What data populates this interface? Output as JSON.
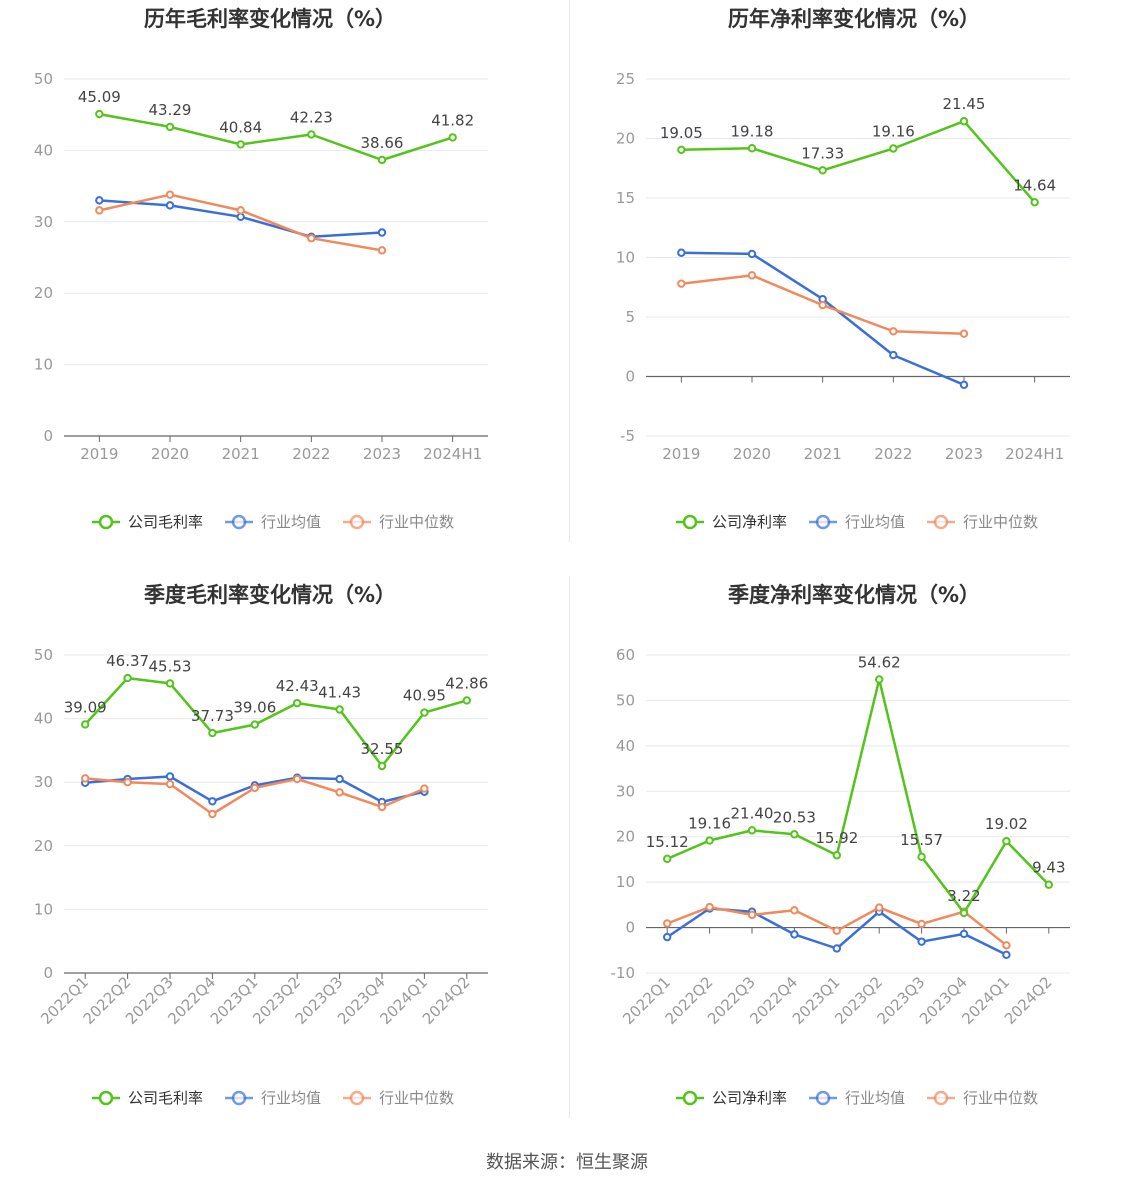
{
  "footer": {
    "source": "数据来源：恒生聚源"
  },
  "colors": {
    "company": "#52c41a",
    "industry_avg": "#3a6fd8",
    "industry_median": "#f08a5d",
    "grid": "#e5e8f0",
    "axis": "#666666"
  },
  "chart_data": [
    {
      "type": "line",
      "title": "历年毛利率变化情况（%）",
      "categories": [
        "2019",
        "2020",
        "2021",
        "2022",
        "2023",
        "2024H1"
      ],
      "yticks": [
        "0",
        "10",
        "20",
        "30",
        "40",
        "50"
      ],
      "ylim": [
        0,
        50
      ],
      "grid": true,
      "legend_position": "bottom",
      "series": [
        {
          "name": "公司毛利率",
          "role": "company",
          "values": [
            45.09,
            43.29,
            40.84,
            42.23,
            38.66,
            41.82
          ],
          "labels": [
            "45.09",
            "43.29",
            "40.84",
            "42.23",
            "38.66",
            "41.82"
          ]
        },
        {
          "name": "行业均值",
          "role": "industry_avg",
          "values": [
            33.0,
            32.3,
            30.7,
            27.9,
            28.5,
            null
          ]
        },
        {
          "name": "行业中位数",
          "role": "industry_median",
          "values": [
            31.6,
            33.8,
            31.6,
            27.7,
            26.0,
            null
          ]
        }
      ]
    },
    {
      "type": "line",
      "title": "历年净利率变化情况（%）",
      "categories": [
        "2019",
        "2020",
        "2021",
        "2022",
        "2023",
        "2024H1"
      ],
      "yticks": [
        "-5",
        "0",
        "5",
        "10",
        "15",
        "20",
        "25"
      ],
      "ylim": [
        -5,
        25
      ],
      "grid": true,
      "legend_position": "bottom",
      "series": [
        {
          "name": "公司净利率",
          "role": "company",
          "values": [
            19.05,
            19.18,
            17.33,
            19.16,
            21.45,
            14.64
          ],
          "labels": [
            "19.05",
            "19.18",
            "17.33",
            "19.16",
            "21.45",
            "14.64"
          ]
        },
        {
          "name": "行业均值",
          "role": "industry_avg",
          "values": [
            10.4,
            10.3,
            6.5,
            1.8,
            -0.7,
            null
          ]
        },
        {
          "name": "行业中位数",
          "role": "industry_median",
          "values": [
            7.8,
            8.5,
            6.0,
            3.8,
            3.6,
            null
          ]
        }
      ]
    },
    {
      "type": "line",
      "title": "季度毛利率变化情况（%）",
      "categories": [
        "2022Q1",
        "2022Q2",
        "2022Q3",
        "2022Q4",
        "2023Q1",
        "2023Q2",
        "2023Q3",
        "2023Q4",
        "2024Q1",
        "2024Q2"
      ],
      "yticks": [
        "0",
        "10",
        "20",
        "30",
        "40",
        "50"
      ],
      "ylim": [
        0,
        50
      ],
      "grid": true,
      "legend_position": "bottom",
      "series": [
        {
          "name": "公司毛利率",
          "role": "company",
          "values": [
            39.09,
            46.37,
            45.53,
            37.73,
            39.06,
            42.43,
            41.43,
            32.55,
            40.95,
            42.86
          ],
          "labels": [
            "39.09",
            "46.37",
            "45.53",
            "37.73",
            "39.06",
            "42.43",
            "41.43",
            "32.55",
            "40.95",
            "42.86"
          ]
        },
        {
          "name": "行业均值",
          "role": "industry_avg",
          "values": [
            29.9,
            30.5,
            30.9,
            27.0,
            29.5,
            30.7,
            30.5,
            26.9,
            28.5,
            null
          ]
        },
        {
          "name": "行业中位数",
          "role": "industry_median",
          "values": [
            30.6,
            30.0,
            29.7,
            25.0,
            29.1,
            30.5,
            28.4,
            26.1,
            29.0,
            null
          ]
        }
      ]
    },
    {
      "type": "line",
      "title": "季度净利率变化情况（%）",
      "categories": [
        "2022Q1",
        "2022Q2",
        "2022Q3",
        "2022Q4",
        "2023Q1",
        "2023Q2",
        "2023Q3",
        "2023Q4",
        "2024Q1",
        "2024Q2"
      ],
      "yticks": [
        "-10",
        "0",
        "10",
        "20",
        "30",
        "40",
        "50",
        "60"
      ],
      "ylim": [
        -10,
        60
      ],
      "grid": true,
      "legend_position": "bottom",
      "series": [
        {
          "name": "公司净利率",
          "role": "company",
          "values": [
            15.12,
            19.16,
            21.4,
            20.53,
            15.92,
            54.62,
            15.57,
            3.22,
            19.02,
            9.43
          ],
          "labels": [
            "15.12",
            "19.16",
            "21.40",
            "20.53",
            "15.92",
            "54.62",
            "15.57",
            "3.22",
            "19.02",
            "9.43"
          ]
        },
        {
          "name": "行业均值",
          "role": "industry_avg",
          "values": [
            -2.1,
            4.2,
            3.5,
            -1.5,
            -4.6,
            3.5,
            -3.1,
            -1.4,
            -6.0,
            null
          ]
        },
        {
          "name": "行业中位数",
          "role": "industry_median",
          "values": [
            0.9,
            4.5,
            2.8,
            3.8,
            -0.7,
            4.4,
            0.8,
            3.5,
            -3.9,
            null
          ]
        }
      ]
    }
  ]
}
